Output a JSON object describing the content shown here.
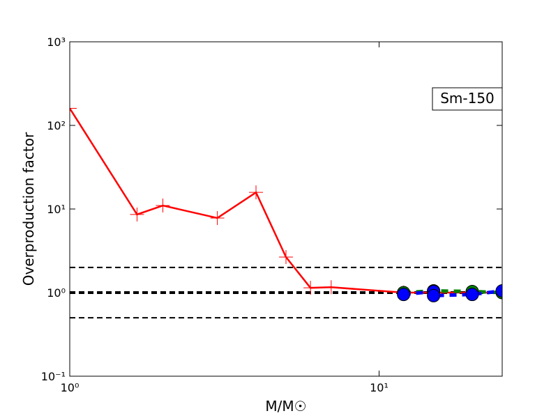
{
  "chart_data": {
    "type": "line",
    "xlabel": "M/M☉",
    "ylabel": "Overproduction factor",
    "annotation": "Sm-150",
    "xlog": true,
    "ylog": true,
    "xlim": [
      1,
      25
    ],
    "ylim": [
      0.1,
      1000
    ],
    "xticks": [
      {
        "value": 1,
        "label": "10⁰"
      },
      {
        "value": 10,
        "label": "10¹"
      }
    ],
    "yticks": [
      {
        "value": 0.1,
        "label": "10⁻¹"
      },
      {
        "value": 1,
        "label": "10⁰"
      },
      {
        "value": 10,
        "label": "10¹"
      },
      {
        "value": 100,
        "label": "10²"
      },
      {
        "value": 1000,
        "label": "10³"
      }
    ],
    "hlines": [
      0.5,
      1,
      2
    ],
    "series": [
      {
        "name": "red",
        "color": "#ff0000",
        "marker": "plus",
        "dash": false,
        "x": [
          1,
          1.65,
          2,
          3,
          4,
          5,
          6,
          7,
          12,
          15,
          20,
          25
        ],
        "values": [
          160,
          8.6,
          11,
          7.8,
          15.8,
          2.66,
          1.14,
          1.16,
          1.0,
          1.0,
          1.0,
          1.0
        ]
      },
      {
        "name": "green",
        "color": "#008000",
        "marker": "circle",
        "dash": true,
        "x": [
          12,
          15,
          20,
          25
        ],
        "values": [
          1.0,
          1.05,
          1.03,
          1.0
        ]
      },
      {
        "name": "blue",
        "color": "#0000ff",
        "marker": "circle",
        "dash": true,
        "x": [
          12,
          15,
          15,
          20,
          25
        ],
        "values": [
          0.95,
          1.03,
          0.92,
          0.95,
          1.05
        ]
      }
    ]
  }
}
